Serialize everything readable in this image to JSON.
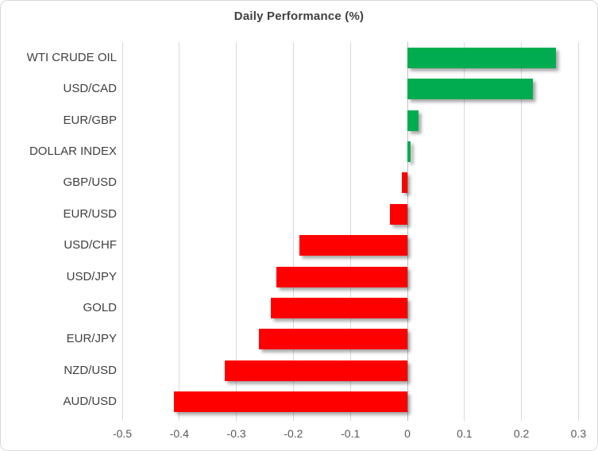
{
  "chart_data": {
    "type": "bar",
    "orientation": "horizontal",
    "title": "Daily Performance (%)",
    "categories": [
      "WTI CRUDE OIL",
      "USD/CAD",
      "EUR/GBP",
      "DOLLAR INDEX",
      "GBP/USD",
      "EUR/USD",
      "USD/CHF",
      "USD/JPY",
      "GOLD",
      "EUR/JPY",
      "NZD/USD",
      "AUD/USD"
    ],
    "values": [
      0.26,
      0.22,
      0.02,
      0.005,
      -0.01,
      -0.03,
      -0.19,
      -0.23,
      -0.24,
      -0.26,
      -0.32,
      -0.41
    ],
    "xlim": [
      -0.5,
      0.3
    ],
    "x_ticks": [
      -0.5,
      -0.4,
      -0.3,
      -0.2,
      -0.1,
      0,
      0.1,
      0.2,
      0.3
    ],
    "x_tick_labels": [
      "-0.5",
      "-0.4",
      "-0.3",
      "-0.2",
      "-0.1",
      "0",
      "0.1",
      "0.2",
      "0.3"
    ],
    "grid": true,
    "legend": false,
    "colors": {
      "positive_bar": "#00ac4f",
      "negative_bar": "#ff0000",
      "gridline": "#d9d9d9",
      "zero_axis": "#bfbfbf",
      "title_text": "#404040",
      "category_text": "#404040",
      "tick_text": "#595959",
      "border": "#d9d9d9",
      "background": "#ffffff"
    }
  }
}
